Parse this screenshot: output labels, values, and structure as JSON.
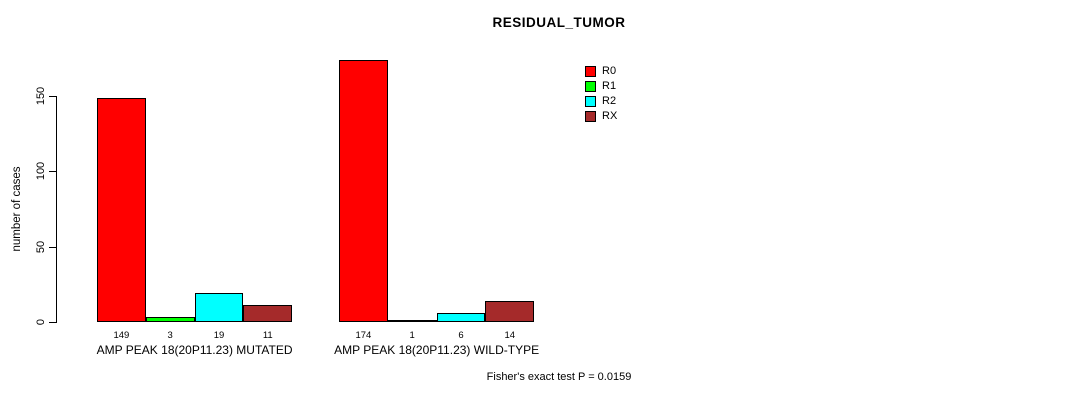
{
  "chart_data": {
    "type": "bar",
    "title": "RESIDUAL_TUMOR",
    "ylabel": "number of cases",
    "xlabel": "",
    "yticks": [
      0,
      50,
      100,
      150
    ],
    "ylim": [
      0,
      175
    ],
    "grid": false,
    "legend_position": "top-right",
    "legend": [
      {
        "label": "R0",
        "color": "#FF0000"
      },
      {
        "label": "R1",
        "color": "#00FF00"
      },
      {
        "label": "R2",
        "color": "#00FFFF"
      },
      {
        "label": "RX",
        "color": "#A52A2A"
      }
    ],
    "series_colors": [
      "#FF0000",
      "#00FF00",
      "#00FFFF",
      "#A52A2A"
    ],
    "groups": [
      {
        "label": "AMP PEAK 18(20P11.23) MUTATED",
        "values": [
          149,
          3,
          19,
          11
        ],
        "value_labels": [
          "149",
          "3",
          "19",
          "11"
        ]
      },
      {
        "label": "AMP PEAK 18(20P11.23) WILD-TYPE",
        "values": [
          174,
          1,
          6,
          14
        ],
        "value_labels": [
          "174",
          "1",
          "6",
          "14"
        ]
      }
    ],
    "footnote": "Fisher's exact test P = 0.0159",
    "axis_color": "#000000"
  }
}
